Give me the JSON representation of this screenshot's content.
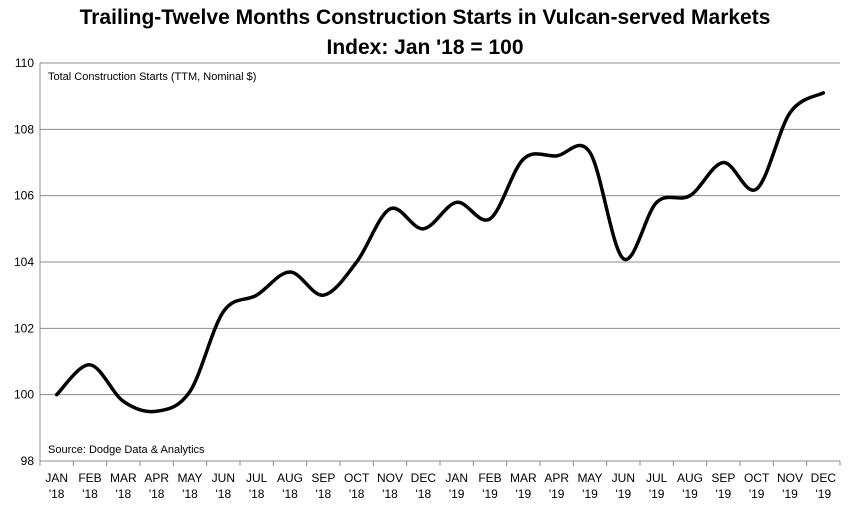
{
  "chart_data": {
    "type": "line",
    "title": "Trailing-Twelve Months Construction Starts in Vulcan-served Markets",
    "subtitle": "Index: Jan '18 = 100",
    "series_label": "Total Construction Starts (TTM, Nominal $)",
    "source": "Source: Dodge Data & Analytics",
    "xlabel": "",
    "ylabel": "",
    "ylim": [
      98,
      110
    ],
    "yticks": [
      98,
      100,
      102,
      104,
      106,
      108,
      110
    ],
    "grid": true,
    "categories": [
      [
        "JAN",
        "'18"
      ],
      [
        "FEB",
        "'18"
      ],
      [
        "MAR",
        "'18"
      ],
      [
        "APR",
        "'18"
      ],
      [
        "MAY",
        "'18"
      ],
      [
        "JUN",
        "'18"
      ],
      [
        "JUL",
        "'18"
      ],
      [
        "AUG",
        "'18"
      ],
      [
        "SEP",
        "'18"
      ],
      [
        "OCT",
        "'18"
      ],
      [
        "NOV",
        "'18"
      ],
      [
        "DEC",
        "'18"
      ],
      [
        "JAN",
        "'19"
      ],
      [
        "FEB",
        "'19"
      ],
      [
        "MAR",
        "'19"
      ],
      [
        "APR",
        "'19"
      ],
      [
        "MAY",
        "'19"
      ],
      [
        "JUN",
        "'19"
      ],
      [
        "JUL",
        "'19"
      ],
      [
        "AUG",
        "'19"
      ],
      [
        "SEP",
        "'19"
      ],
      [
        "OCT",
        "'19"
      ],
      [
        "NOV",
        "'19"
      ],
      [
        "DEC",
        "'19"
      ]
    ],
    "values": [
      100.0,
      100.9,
      99.8,
      99.5,
      100.1,
      102.5,
      103.0,
      103.7,
      103.0,
      104.0,
      105.6,
      105.0,
      105.8,
      105.3,
      107.1,
      107.2,
      107.3,
      104.1,
      105.8,
      106.0,
      107.0,
      106.2,
      108.5,
      109.1
    ],
    "line_color": "#000000",
    "grid_color": "#8c8c8c"
  }
}
